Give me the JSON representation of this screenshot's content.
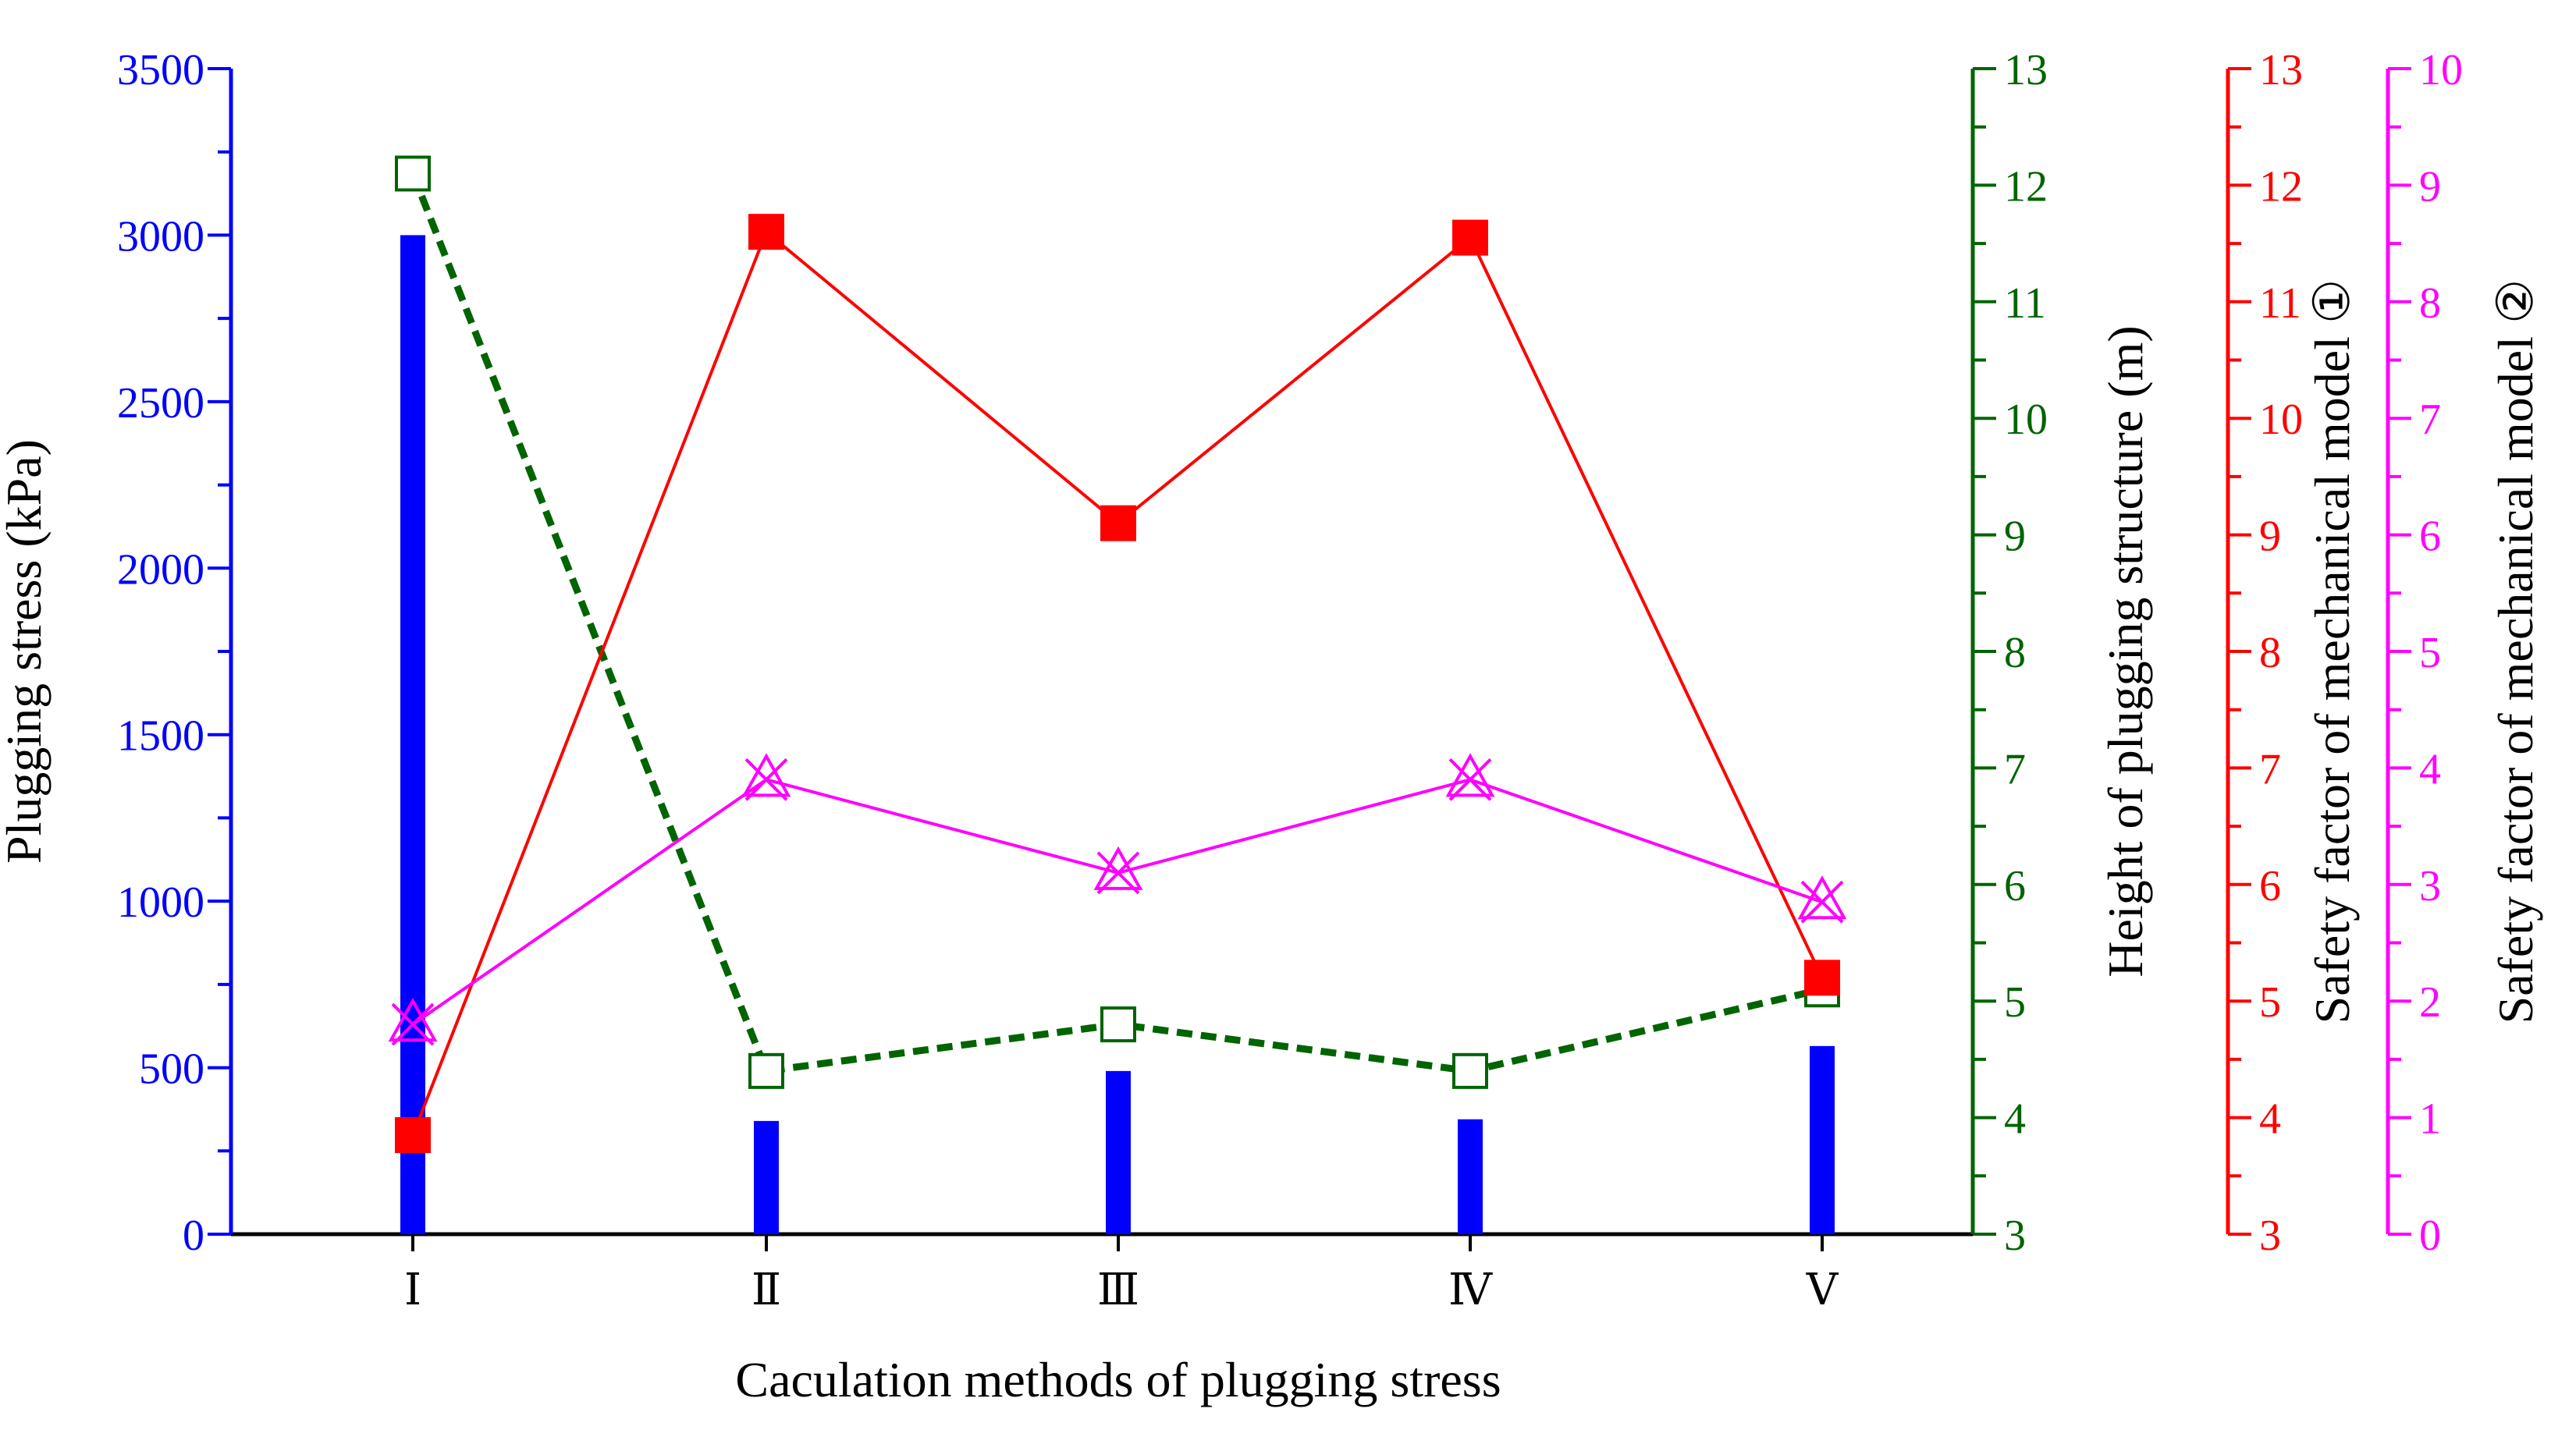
{
  "chart_data": {
    "type": "bar+line",
    "xlabel": "Caculation methods of plugging stress",
    "categories": [
      "Ⅰ",
      "Ⅱ",
      "Ⅲ",
      "Ⅳ",
      "Ⅴ"
    ],
    "axes": {
      "stress": {
        "label": "Plugging stress (kPa)",
        "range": [
          0,
          3500
        ],
        "ticks": [
          "0",
          "500",
          "1000",
          "1500",
          "2000",
          "2500",
          "3000",
          "3500"
        ],
        "color": "#0000ff"
      },
      "height": {
        "label": "Height of plugging structure (m)",
        "range": [
          3,
          13
        ],
        "ticks": [
          "3",
          "4",
          "5",
          "6",
          "7",
          "8",
          "9",
          "10",
          "11",
          "12",
          "13"
        ],
        "color": "#006400"
      },
      "sf1": {
        "label": "Safety factor of mechanical model ①",
        "range": [
          3,
          13
        ],
        "ticks": [
          "3",
          "4",
          "5",
          "6",
          "7",
          "8",
          "9",
          "10",
          "11",
          "12",
          "13"
        ],
        "color": "#ff0000"
      },
      "sf2": {
        "label": "Safety factor of mechanical model ②",
        "range": [
          0,
          10
        ],
        "ticks": [
          "0",
          "1",
          "2",
          "3",
          "4",
          "5",
          "6",
          "7",
          "8",
          "9",
          "10"
        ],
        "color": "#ff00ff"
      }
    },
    "series": [
      {
        "name": "Plugging stress",
        "axis": "stress",
        "style": "bar",
        "color": "#0000ff",
        "values": [
          3000,
          340,
          490,
          345,
          565
        ]
      },
      {
        "name": "Height of plugging structure",
        "axis": "height",
        "style": "dashed-open-square",
        "color": "#006400",
        "values": [
          12.1,
          4.4,
          4.8,
          4.4,
          5.1
        ]
      },
      {
        "name": "Safety factor of mechanical model ①",
        "axis": "sf1",
        "style": "line-filled-square",
        "color": "#ff0000",
        "values": [
          3.85,
          11.6,
          9.1,
          11.55,
          5.2
        ]
      },
      {
        "name": "Safety factor of mechanical model ②",
        "axis": "sf2",
        "style": "line-star",
        "color": "#ff00ff",
        "values": [
          1.8,
          3.9,
          3.1,
          3.9,
          2.85
        ]
      }
    ]
  }
}
